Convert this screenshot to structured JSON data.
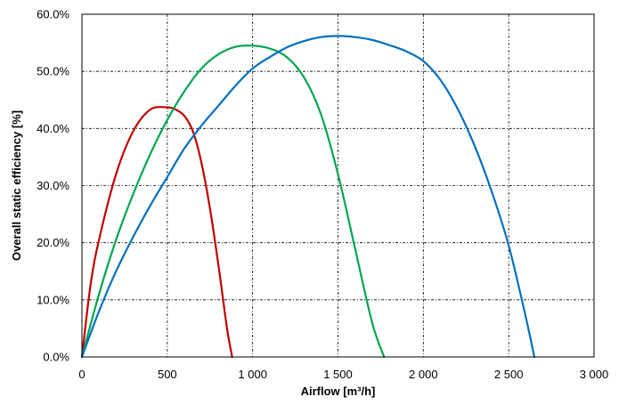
{
  "chart_data": {
    "type": "line",
    "title": "",
    "xlabel": "Airflow [m³/h]",
    "ylabel": "Overall static efficiency [%]",
    "xlim": [
      0,
      3000
    ],
    "ylim": [
      0,
      60
    ],
    "x_ticks": [
      0,
      500,
      1000,
      1500,
      2000,
      2500,
      3000
    ],
    "x_tick_labels": [
      "0",
      "500",
      "1 000",
      "1 500",
      "2 000",
      "2 500",
      "3 000"
    ],
    "y_ticks": [
      0,
      10,
      20,
      30,
      40,
      50,
      60
    ],
    "y_tick_labels": [
      "0.0%",
      "10.0%",
      "20.0%",
      "30.0%",
      "40.0%",
      "50.0%",
      "60.0%"
    ],
    "grid": true,
    "legend": "none",
    "series": [
      {
        "color": "#c00000",
        "x": [
          0,
          50,
          100,
          200,
          300,
          400,
          500,
          550,
          600,
          650,
          700,
          750,
          800,
          850,
          880
        ],
        "y": [
          0,
          12.5,
          20.5,
          32,
          39.5,
          43.3,
          43.7,
          43.3,
          42.2,
          39.5,
          34,
          26,
          16,
          5,
          0
        ]
      },
      {
        "color": "#00a651",
        "x": [
          0,
          100,
          200,
          300,
          400,
          500,
          600,
          700,
          800,
          900,
          1000,
          1100,
          1200,
          1300,
          1400,
          1500,
          1600,
          1700,
          1770
        ],
        "y": [
          0,
          11,
          20.5,
          28.5,
          35.5,
          41.5,
          46.5,
          50.5,
          53,
          54.3,
          54.5,
          54,
          52.5,
          49,
          42.5,
          32,
          19,
          6,
          0
        ]
      },
      {
        "color": "#0070c0",
        "x": [
          0,
          100,
          200,
          300,
          400,
          500,
          600,
          700,
          800,
          900,
          1000,
          1100,
          1200,
          1300,
          1400,
          1500,
          1600,
          1700,
          1800,
          1900,
          2000,
          2100,
          2200,
          2300,
          2400,
          2500,
          2600,
          2650
        ],
        "y": [
          0,
          8,
          15,
          21,
          26.5,
          31.5,
          36.5,
          40.5,
          44,
          47.5,
          50.5,
          52.5,
          54.2,
          55.3,
          56,
          56.2,
          56,
          55.5,
          54.6,
          53.5,
          51.8,
          48.5,
          43.5,
          37,
          29,
          19.5,
          7,
          0
        ]
      }
    ]
  }
}
